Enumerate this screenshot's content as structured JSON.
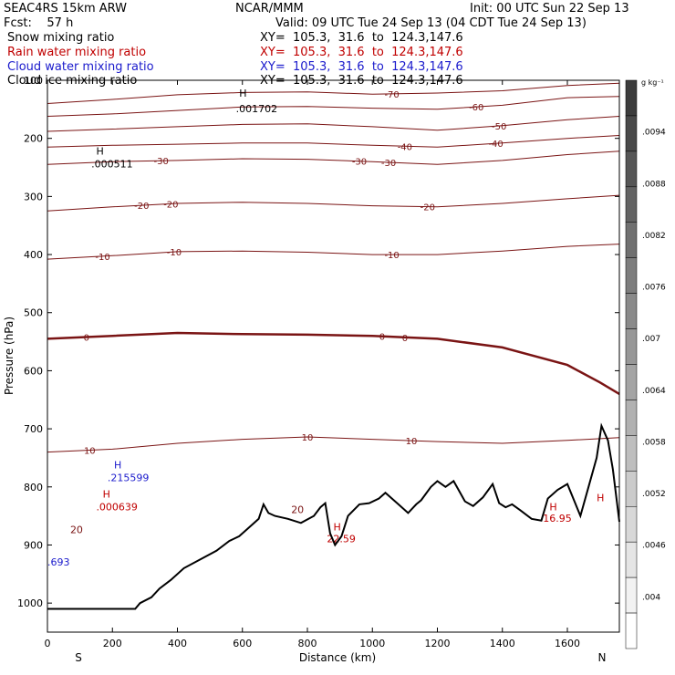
{
  "header": {
    "model": "SEAC4RS 15km ARW",
    "forecast": "Fcst:    57 h",
    "center": "NCAR/MMM",
    "init": "Init: 00 UTC Sun 22 Sep 13",
    "valid": "Valid: 09 UTC Tue 24 Sep 13 (04 CDT Tue 24 Sep 13)",
    "lines": [
      {
        "name": "Snow mixing ratio",
        "xy": "XY=  105.3,  31.6  to  124.3,147.6",
        "color": "#000000"
      },
      {
        "name": "Rain water mixing ratio",
        "xy": "XY=  105.3,  31.6  to  124.3,147.6",
        "color": "#c00000"
      },
      {
        "name": "Cloud water mixing ratio",
        "xy": "XY=  105.3,  31.6  to  124.3,147.6",
        "color": "#1a1acc"
      },
      {
        "name": "Cloud ice mixing ratio",
        "xy": "XY=  105.3,  31.6  to  124.3,147.6",
        "color": "#000000"
      }
    ]
  },
  "chart_data": {
    "type": "line",
    "xlabel": "Distance (km)",
    "ylabel": "Pressure (hPa)",
    "xlim": [
      0,
      1760
    ],
    "ylim": [
      1050,
      100
    ],
    "xticks": [
      0,
      200,
      400,
      600,
      800,
      1000,
      1200,
      1400,
      1600
    ],
    "yticks": [
      100,
      200,
      300,
      400,
      500,
      600,
      700,
      800,
      900,
      1000
    ],
    "end_labels": {
      "left": "S",
      "right": "N"
    },
    "colors": {
      "contour": "#7a1414",
      "terrain": "#000000",
      "rain": "#c00000",
      "cloud": "#1a1acc"
    },
    "terrain": [
      [
        0,
        1010
      ],
      [
        270,
        1010
      ],
      [
        285,
        1000
      ],
      [
        320,
        990
      ],
      [
        345,
        975
      ],
      [
        380,
        960
      ],
      [
        420,
        940
      ],
      [
        470,
        925
      ],
      [
        520,
        910
      ],
      [
        560,
        893
      ],
      [
        590,
        885
      ],
      [
        620,
        870
      ],
      [
        650,
        855
      ],
      [
        665,
        830
      ],
      [
        680,
        845
      ],
      [
        700,
        850
      ],
      [
        740,
        855
      ],
      [
        780,
        862
      ],
      [
        820,
        850
      ],
      [
        840,
        835
      ],
      [
        855,
        828
      ],
      [
        870,
        880
      ],
      [
        885,
        900
      ],
      [
        905,
        885
      ],
      [
        925,
        850
      ],
      [
        960,
        830
      ],
      [
        990,
        828
      ],
      [
        1020,
        820
      ],
      [
        1040,
        810
      ],
      [
        1060,
        820
      ],
      [
        1080,
        830
      ],
      [
        1110,
        845
      ],
      [
        1135,
        830
      ],
      [
        1150,
        823
      ],
      [
        1180,
        800
      ],
      [
        1200,
        790
      ],
      [
        1225,
        800
      ],
      [
        1250,
        790
      ],
      [
        1285,
        825
      ],
      [
        1310,
        833
      ],
      [
        1340,
        818
      ],
      [
        1370,
        795
      ],
      [
        1390,
        828
      ],
      [
        1410,
        835
      ],
      [
        1430,
        830
      ],
      [
        1455,
        840
      ],
      [
        1490,
        855
      ],
      [
        1520,
        858
      ],
      [
        1540,
        820
      ],
      [
        1570,
        805
      ],
      [
        1600,
        795
      ],
      [
        1640,
        850
      ],
      [
        1665,
        800
      ],
      [
        1690,
        750
      ],
      [
        1705,
        695
      ],
      [
        1725,
        720
      ],
      [
        1740,
        770
      ],
      [
        1760,
        860
      ]
    ],
    "contours": [
      {
        "label": -70,
        "points": [
          [
            0,
            140
          ],
          [
            200,
            133
          ],
          [
            400,
            125
          ],
          [
            600,
            121
          ],
          [
            800,
            120
          ],
          [
            1000,
            124
          ],
          [
            1200,
            122
          ],
          [
            1400,
            118
          ],
          [
            1600,
            109
          ],
          [
            1760,
            105
          ]
        ],
        "labels_at": [
          1060
        ]
      },
      {
        "label": -60,
        "points": [
          [
            0,
            162
          ],
          [
            200,
            158
          ],
          [
            400,
            152
          ],
          [
            600,
            146
          ],
          [
            800,
            145
          ],
          [
            1000,
            148
          ],
          [
            1200,
            150
          ],
          [
            1400,
            143
          ],
          [
            1600,
            130
          ],
          [
            1760,
            128
          ]
        ],
        "labels_at": [
          1320
        ]
      },
      {
        "label": -50,
        "points": [
          [
            0,
            188
          ],
          [
            200,
            184
          ],
          [
            400,
            180
          ],
          [
            600,
            176
          ],
          [
            800,
            175
          ],
          [
            1000,
            180
          ],
          [
            1200,
            186
          ],
          [
            1400,
            178
          ],
          [
            1600,
            168
          ],
          [
            1760,
            162
          ]
        ],
        "labels_at": [
          1390
        ]
      },
      {
        "label": -40,
        "points": [
          [
            0,
            215
          ],
          [
            200,
            212
          ],
          [
            400,
            210
          ],
          [
            600,
            208
          ],
          [
            800,
            208
          ],
          [
            1000,
            212
          ],
          [
            1200,
            215
          ],
          [
            1400,
            208
          ],
          [
            1600,
            200
          ],
          [
            1760,
            195
          ]
        ],
        "labels_at": [
          1100,
          1380
        ]
      },
      {
        "label": -30,
        "points": [
          [
            0,
            245
          ],
          [
            200,
            240
          ],
          [
            400,
            238
          ],
          [
            600,
            235
          ],
          [
            800,
            236
          ],
          [
            1000,
            240
          ],
          [
            1200,
            245
          ],
          [
            1400,
            238
          ],
          [
            1600,
            228
          ],
          [
            1760,
            222
          ]
        ],
        "labels_at": [
          350,
          960,
          1050
        ]
      },
      {
        "label": -20,
        "points": [
          [
            0,
            325
          ],
          [
            200,
            318
          ],
          [
            400,
            312
          ],
          [
            600,
            310
          ],
          [
            800,
            312
          ],
          [
            1000,
            316
          ],
          [
            1200,
            318
          ],
          [
            1400,
            312
          ],
          [
            1600,
            304
          ],
          [
            1760,
            298
          ]
        ],
        "labels_at": [
          290,
          380,
          1170
        ]
      },
      {
        "label": -10,
        "points": [
          [
            0,
            408
          ],
          [
            200,
            402
          ],
          [
            400,
            395
          ],
          [
            600,
            394
          ],
          [
            800,
            396
          ],
          [
            1000,
            400
          ],
          [
            1200,
            400
          ],
          [
            1400,
            394
          ],
          [
            1600,
            386
          ],
          [
            1760,
            382
          ]
        ],
        "labels_at": [
          170,
          390,
          1060
        ]
      },
      {
        "label": 0,
        "bold": true,
        "points": [
          [
            0,
            545
          ],
          [
            200,
            540
          ],
          [
            400,
            535
          ],
          [
            600,
            537
          ],
          [
            800,
            538
          ],
          [
            1000,
            540
          ],
          [
            1200,
            545
          ],
          [
            1400,
            560
          ],
          [
            1600,
            590
          ],
          [
            1700,
            620
          ],
          [
            1760,
            640
          ]
        ],
        "labels_at": [
          120,
          1030,
          1100
        ]
      },
      {
        "label": 10,
        "points": [
          [
            0,
            740
          ],
          [
            200,
            735
          ],
          [
            400,
            725
          ],
          [
            600,
            718
          ],
          [
            800,
            714
          ],
          [
            1000,
            718
          ],
          [
            1200,
            722
          ],
          [
            1400,
            725
          ],
          [
            1600,
            720
          ],
          [
            1760,
            715
          ]
        ],
        "labels_at": [
          130,
          800,
          1120
        ]
      }
    ],
    "annotations": [
      {
        "text": "H",
        "x": 590,
        "y": 128,
        "color": "#000000"
      },
      {
        "text": ".001702",
        "x": 580,
        "y": 155,
        "color": "#000000"
      },
      {
        "text": "H",
        "x": 150,
        "y": 228,
        "color": "#000000"
      },
      {
        "text": ".000511",
        "x": 135,
        "y": 250,
        "color": "#000000"
      },
      {
        "text": "H",
        "x": 205,
        "y": 768,
        "color": "#1a1acc"
      },
      {
        "text": ".215599",
        "x": 185,
        "y": 790,
        "color": "#1a1acc"
      },
      {
        "text": "H",
        "x": 170,
        "y": 818,
        "color": "#c00000"
      },
      {
        "text": ".000639",
        "x": 150,
        "y": 840,
        "color": "#c00000"
      },
      {
        "text": "20",
        "x": 70,
        "y": 880,
        "color": "#7a1414"
      },
      {
        "text": "20",
        "x": 750,
        "y": 845,
        "color": "#7a1414"
      },
      {
        "text": "H",
        "x": 880,
        "y": 875,
        "color": "#c00000"
      },
      {
        "text": "22.59",
        "x": 860,
        "y": 895,
        "color": "#c00000"
      },
      {
        "text": "H",
        "x": 1545,
        "y": 840,
        "color": "#c00000"
      },
      {
        "text": "16.95",
        "x": 1525,
        "y": 860,
        "color": "#c00000"
      },
      {
        "text": "H",
        "x": 1690,
        "y": 825,
        "color": "#c00000"
      },
      {
        "text": ".693",
        "x": 0,
        "y": 935,
        "color": "#1a1acc"
      }
    ],
    "colorbar": {
      "unit": "g kg⁻¹",
      "ticks": [
        ".0094",
        ".0088",
        ".0082",
        ".0076",
        ".007",
        ".0064",
        ".0058",
        ".0052",
        ".0046",
        ".004"
      ]
    }
  }
}
